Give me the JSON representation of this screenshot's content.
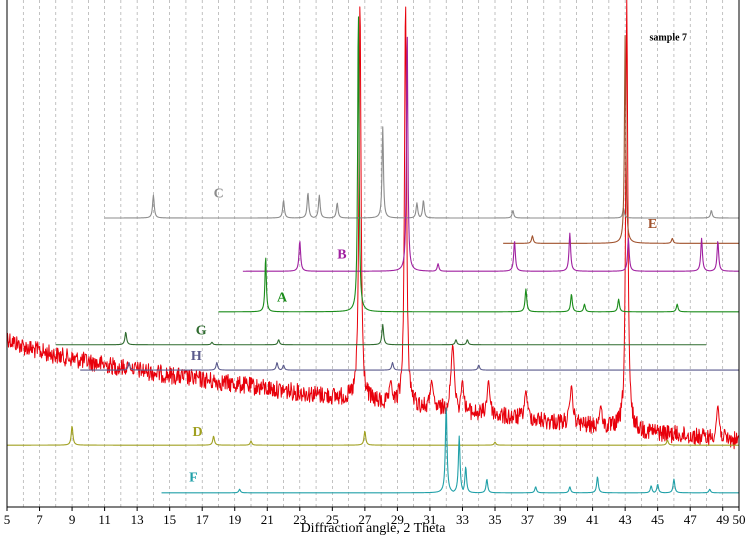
{
  "chart_data": {
    "type": "line",
    "title": "sample 7",
    "xlabel": "Diffraction angle, 2 Theta",
    "ylabel": "",
    "xlim": [
      5,
      50
    ],
    "x_ticks": [
      5,
      7,
      9,
      11,
      13,
      15,
      17,
      19,
      21,
      23,
      25,
      27,
      29,
      31,
      33,
      35,
      37,
      39,
      41,
      43,
      45,
      47,
      49,
      50
    ],
    "grid": true,
    "series": [
      {
        "name": "sample 7",
        "color": "#e8000b",
        "noise": true,
        "x_range": [
          5,
          50
        ],
        "baseline_left": 0.66,
        "baseline_right": 0.87,
        "peaks": [
          [
            26.7,
            0.0,
            0.15
          ],
          [
            29.5,
            0.0,
            0.15
          ],
          [
            43.1,
            0.0,
            0.15
          ],
          [
            32.4,
            0.68,
            0.25
          ],
          [
            33.0,
            0.75,
            0.2
          ],
          [
            31.1,
            0.75,
            0.2
          ],
          [
            34.6,
            0.75,
            0.2
          ],
          [
            36.9,
            0.77,
            0.2
          ],
          [
            39.7,
            0.76,
            0.2
          ],
          [
            12.5,
            0.72,
            0.2
          ],
          [
            28.6,
            0.75,
            0.2
          ],
          [
            41.5,
            0.8,
            0.2
          ],
          [
            48.7,
            0.8,
            0.2
          ],
          [
            20.8,
            0.82,
            0.2
          ],
          [
            22.0,
            0.82,
            0.2
          ]
        ]
      },
      {
        "name": "C",
        "color": "#8c8c8c",
        "x_range": [
          11,
          50
        ],
        "baseline": 0.43,
        "peaks": [
          [
            14.0,
            0.385,
            0.12
          ],
          [
            22.0,
            0.395,
            0.12
          ],
          [
            23.5,
            0.38,
            0.12
          ],
          [
            24.2,
            0.385,
            0.12
          ],
          [
            25.3,
            0.4,
            0.12
          ],
          [
            28.1,
            0.25,
            0.1
          ],
          [
            30.2,
            0.4,
            0.12
          ],
          [
            30.6,
            0.395,
            0.12
          ],
          [
            36.1,
            0.415,
            0.12
          ],
          [
            42.9,
            0.41,
            0.12
          ],
          [
            48.3,
            0.415,
            0.12
          ]
        ]
      },
      {
        "name": "E",
        "color": "#a0522d",
        "x_range": [
          35.5,
          50
        ],
        "baseline": 0.48,
        "peaks": [
          [
            37.3,
            0.465,
            0.12
          ],
          [
            43.0,
            0.07,
            0.1
          ],
          [
            45.9,
            0.47,
            0.12
          ]
        ]
      },
      {
        "name": "B",
        "color": "#a020a0",
        "x_range": [
          19.5,
          50
        ],
        "baseline": 0.535,
        "peaks": [
          [
            23.0,
            0.475,
            0.12
          ],
          [
            29.6,
            0.055,
            0.1
          ],
          [
            31.5,
            0.52,
            0.12
          ],
          [
            36.2,
            0.475,
            0.12
          ],
          [
            39.6,
            0.46,
            0.12
          ],
          [
            43.2,
            0.47,
            0.12
          ],
          [
            47.7,
            0.47,
            0.12
          ],
          [
            48.7,
            0.475,
            0.12
          ]
        ]
      },
      {
        "name": "A",
        "color": "#1a8c1a",
        "x_range": [
          18,
          50
        ],
        "baseline": 0.615,
        "peaks": [
          [
            20.9,
            0.505,
            0.1
          ],
          [
            26.6,
            0.01,
            0.1
          ],
          [
            36.9,
            0.57,
            0.12
          ],
          [
            39.7,
            0.58,
            0.12
          ],
          [
            40.5,
            0.6,
            0.12
          ],
          [
            42.6,
            0.59,
            0.12
          ],
          [
            46.2,
            0.6,
            0.12
          ]
        ]
      },
      {
        "name": "G",
        "color": "#2f6b2f",
        "x_range": [
          8,
          48
        ],
        "baseline": 0.68,
        "peaks": [
          [
            12.3,
            0.655,
            0.12
          ],
          [
            17.6,
            0.675,
            0.12
          ],
          [
            21.7,
            0.67,
            0.12
          ],
          [
            28.1,
            0.64,
            0.12
          ],
          [
            32.6,
            0.67,
            0.12
          ],
          [
            33.3,
            0.67,
            0.12
          ]
        ]
      },
      {
        "name": "H",
        "color": "#5a5a8c",
        "x_range": [
          9.5,
          50
        ],
        "baseline": 0.73,
        "peaks": [
          [
            12.5,
            0.715,
            0.12
          ],
          [
            17.9,
            0.715,
            0.12
          ],
          [
            21.6,
            0.715,
            0.12
          ],
          [
            22.0,
            0.72,
            0.12
          ],
          [
            28.7,
            0.715,
            0.12
          ],
          [
            34.0,
            0.72,
            0.12
          ]
        ]
      },
      {
        "name": "D",
        "color": "#a0a020",
        "x_range": [
          5,
          50
        ],
        "baseline": 0.878,
        "peaks": [
          [
            9.0,
            0.84,
            0.12
          ],
          [
            17.7,
            0.86,
            0.12
          ],
          [
            20.0,
            0.87,
            0.12
          ],
          [
            27.0,
            0.85,
            0.12
          ],
          [
            35.0,
            0.872,
            0.12
          ],
          [
            45.6,
            0.868,
            0.12
          ]
        ]
      },
      {
        "name": "F",
        "color": "#20a0a8",
        "x_range": [
          14.5,
          50
        ],
        "baseline": 0.972,
        "peaks": [
          [
            19.3,
            0.965,
            0.12
          ],
          [
            32.0,
            0.8,
            0.12
          ],
          [
            32.8,
            0.86,
            0.12
          ],
          [
            33.2,
            0.92,
            0.12
          ],
          [
            34.5,
            0.945,
            0.12
          ],
          [
            37.5,
            0.96,
            0.12
          ],
          [
            39.6,
            0.96,
            0.12
          ],
          [
            41.3,
            0.94,
            0.12
          ],
          [
            44.6,
            0.958,
            0.12
          ],
          [
            45.0,
            0.955,
            0.12
          ],
          [
            46.0,
            0.945,
            0.12
          ],
          [
            48.2,
            0.965,
            0.12
          ]
        ]
      }
    ],
    "annotations": [
      {
        "name": "sample 7",
        "x": 44.5,
        "y": 0.08
      },
      {
        "name": "C",
        "x": 17.7,
        "y": 0.39
      },
      {
        "name": "E",
        "x": 44.4,
        "y": 0.45
      },
      {
        "name": "B",
        "x": 25.3,
        "y": 0.51
      },
      {
        "name": "A",
        "x": 21.6,
        "y": 0.595
      },
      {
        "name": "G",
        "x": 16.6,
        "y": 0.66
      },
      {
        "name": "H",
        "x": 16.3,
        "y": 0.71
      },
      {
        "name": "D",
        "x": 16.4,
        "y": 0.86
      },
      {
        "name": "F",
        "x": 16.2,
        "y": 0.95
      }
    ]
  }
}
